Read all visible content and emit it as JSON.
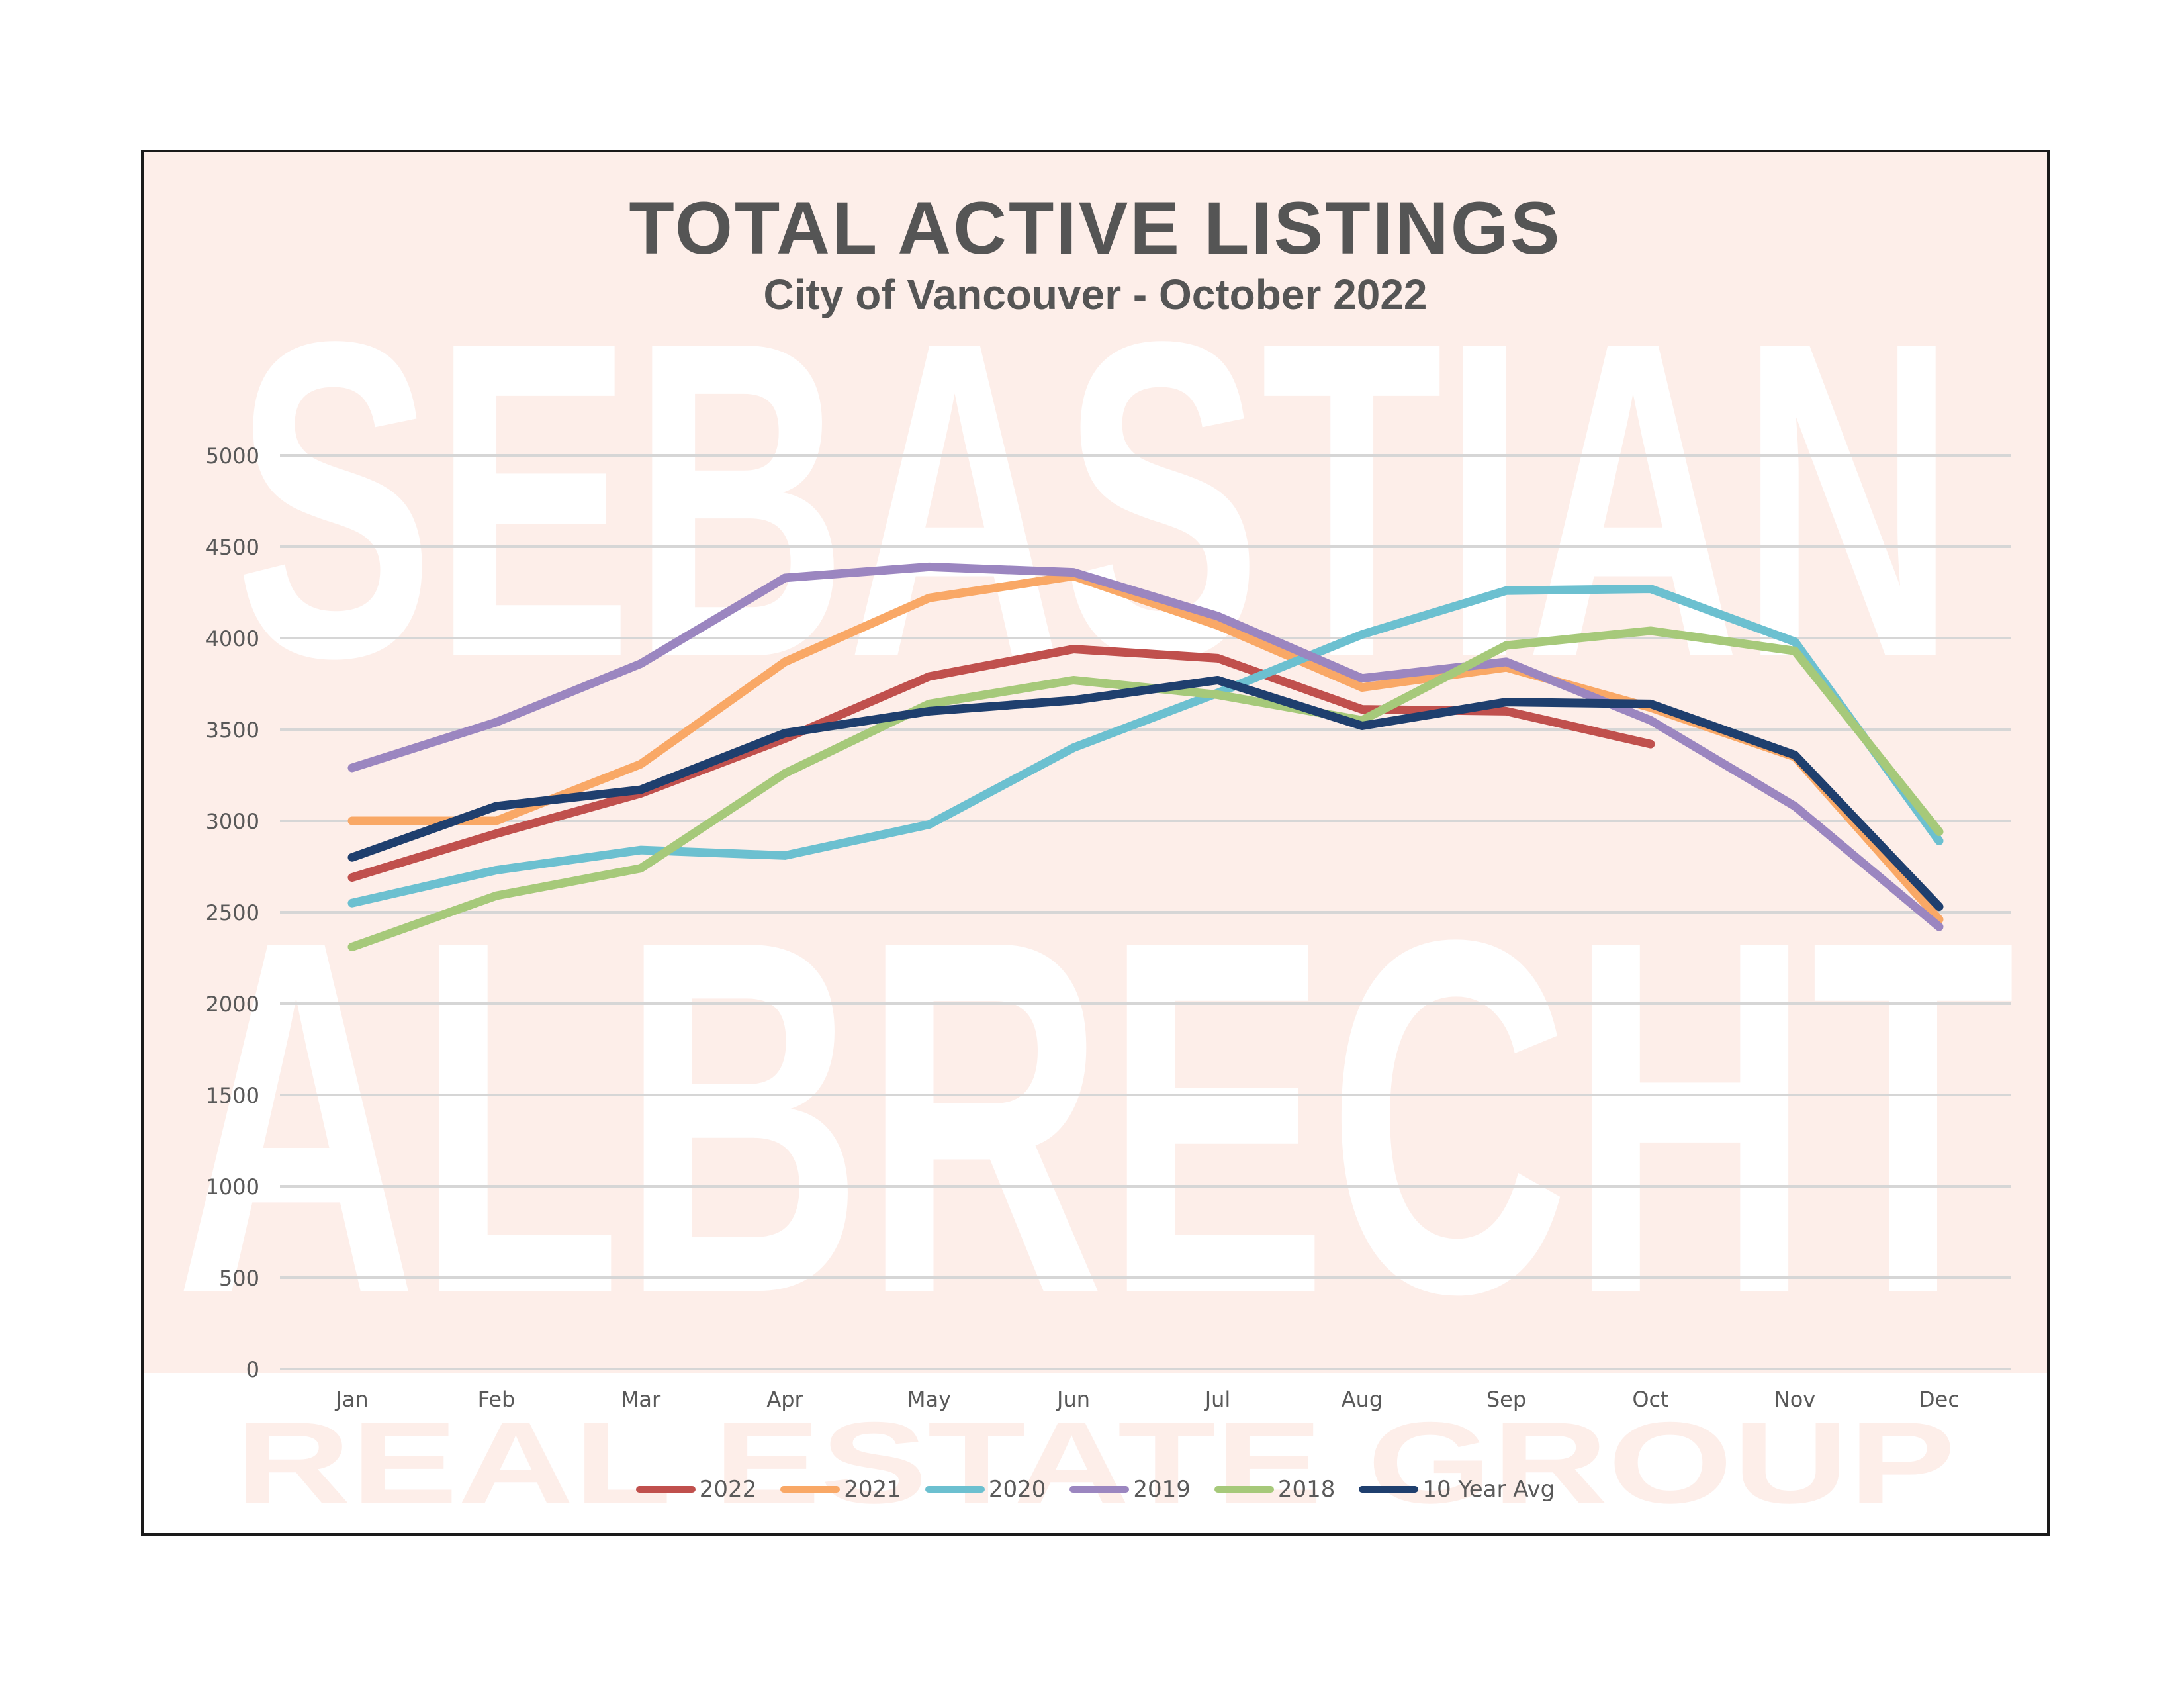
{
  "chart_data": {
    "type": "line",
    "title": "TOTAL ACTIVE LISTINGS",
    "subtitle": "City of Vancouver - October 2022",
    "xlabel": "",
    "ylabel": "",
    "categories": [
      "Jan",
      "Feb",
      "Mar",
      "Apr",
      "May",
      "Jun",
      "Jul",
      "Aug",
      "Sep",
      "Oct",
      "Nov",
      "Dec"
    ],
    "ylim": [
      0,
      5000
    ],
    "yticks": [
      0,
      500,
      1000,
      1500,
      2000,
      2500,
      3000,
      3500,
      4000,
      4500,
      5000
    ],
    "grid": true,
    "legend_position": "bottom",
    "series": [
      {
        "name": "2022",
        "color": "#c0504d",
        "values": [
          2690,
          2930,
          3150,
          3450,
          3790,
          3940,
          3890,
          3610,
          3600,
          3420,
          null,
          null
        ]
      },
      {
        "name": "2021",
        "color": "#f9a866",
        "values": [
          3000,
          3000,
          3310,
          3870,
          4220,
          4340,
          4070,
          3730,
          3840,
          3620,
          3350,
          2460
        ]
      },
      {
        "name": "2020",
        "color": "#6cc0d0",
        "values": [
          2550,
          2730,
          2840,
          2810,
          2980,
          3400,
          3700,
          4020,
          4260,
          4270,
          3980,
          2890
        ]
      },
      {
        "name": "2019",
        "color": "#9b86c0",
        "values": [
          3290,
          3540,
          3860,
          4330,
          4390,
          4360,
          4120,
          3780,
          3870,
          3550,
          3080,
          2420
        ]
      },
      {
        "name": "2018",
        "color": "#a6c97a",
        "values": [
          2310,
          2590,
          2740,
          3260,
          3640,
          3770,
          3690,
          3550,
          3960,
          4040,
          3930,
          2940
        ]
      },
      {
        "name": "10 Year Avg",
        "color": "#1f3f6e",
        "values": [
          2800,
          3080,
          3170,
          3480,
          3600,
          3660,
          3770,
          3520,
          3650,
          3640,
          3360,
          2530
        ]
      }
    ]
  },
  "watermark": {
    "line1": "SEBASTIAN",
    "line2": "ALBRECHT",
    "line3": "REAL ESTATE GROUP"
  }
}
